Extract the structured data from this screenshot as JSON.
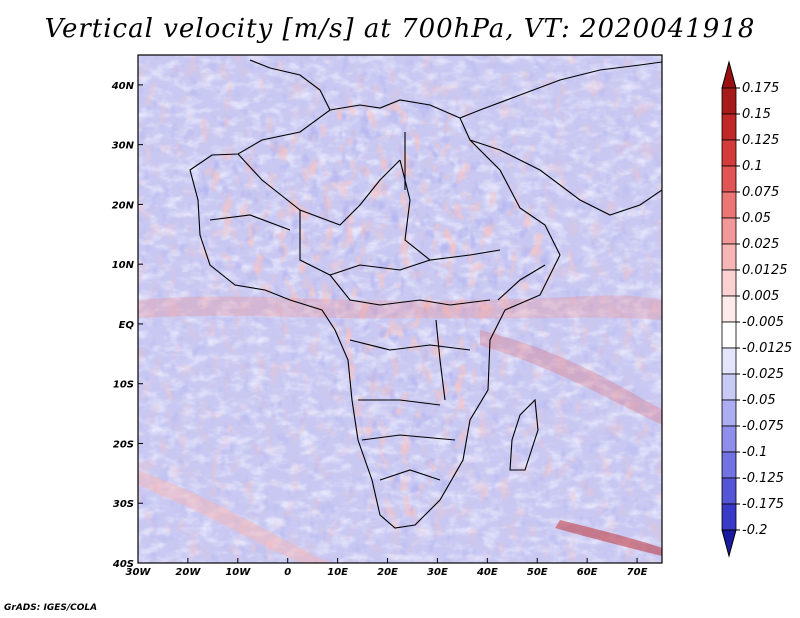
{
  "title": "Vertical velocity [m/s] at 700hPa, VT: 2020041918",
  "credit": "GrADS: IGES/COLA",
  "map": {
    "lon_range": [
      -30,
      75
    ],
    "lat_range": [
      -40,
      45
    ],
    "lat_ticks": [
      {
        "value": 40,
        "label": "40N"
      },
      {
        "value": 30,
        "label": "30N"
      },
      {
        "value": 20,
        "label": "20N"
      },
      {
        "value": 10,
        "label": "10N"
      },
      {
        "value": 0,
        "label": "EQ"
      },
      {
        "value": -10,
        "label": "10S"
      },
      {
        "value": -20,
        "label": "20S"
      },
      {
        "value": -30,
        "label": "30S"
      },
      {
        "value": -40,
        "label": "40S"
      }
    ],
    "lon_ticks": [
      {
        "value": -30,
        "label": "30W"
      },
      {
        "value": -20,
        "label": "20W"
      },
      {
        "value": -10,
        "label": "10W"
      },
      {
        "value": 0,
        "label": "0"
      },
      {
        "value": 10,
        "label": "10E"
      },
      {
        "value": 20,
        "label": "20E"
      },
      {
        "value": 30,
        "label": "30E"
      },
      {
        "value": 40,
        "label": "40E"
      },
      {
        "value": 50,
        "label": "50E"
      },
      {
        "value": 60,
        "label": "60E"
      },
      {
        "value": 70,
        "label": "70E"
      }
    ]
  },
  "colorbar": {
    "levels": [
      {
        "label": "0.175",
        "color": "#a61a1a"
      },
      {
        "label": "0.15",
        "color": "#c02727"
      },
      {
        "label": "0.125",
        "color": "#d43c3c"
      },
      {
        "label": "0.1",
        "color": "#e25555"
      },
      {
        "label": "0.075",
        "color": "#ec7676"
      },
      {
        "label": "0.05",
        "color": "#f29898"
      },
      {
        "label": "0.025",
        "color": "#f6b6b6"
      },
      {
        "label": "0.0125",
        "color": "#fad2d2"
      },
      {
        "label": "0.005",
        "color": "#fdeaea"
      },
      {
        "label": "-0.005",
        "color": "#ffffff"
      },
      {
        "label": "-0.0125",
        "color": "#e4e4fb"
      },
      {
        "label": "-0.025",
        "color": "#c9c9f6"
      },
      {
        "label": "-0.05",
        "color": "#adadf1"
      },
      {
        "label": "-0.075",
        "color": "#8f8feb"
      },
      {
        "label": "-0.1",
        "color": "#7272e3"
      },
      {
        "label": "-0.125",
        "color": "#5555d7"
      },
      {
        "label": "-0.175",
        "color": "#3a3ac8"
      },
      {
        "label": "-0.2",
        "color": "#2323b2"
      }
    ],
    "extra_top_color": "#9a1010",
    "extra_bottom_color": "#1a1aa0"
  }
}
